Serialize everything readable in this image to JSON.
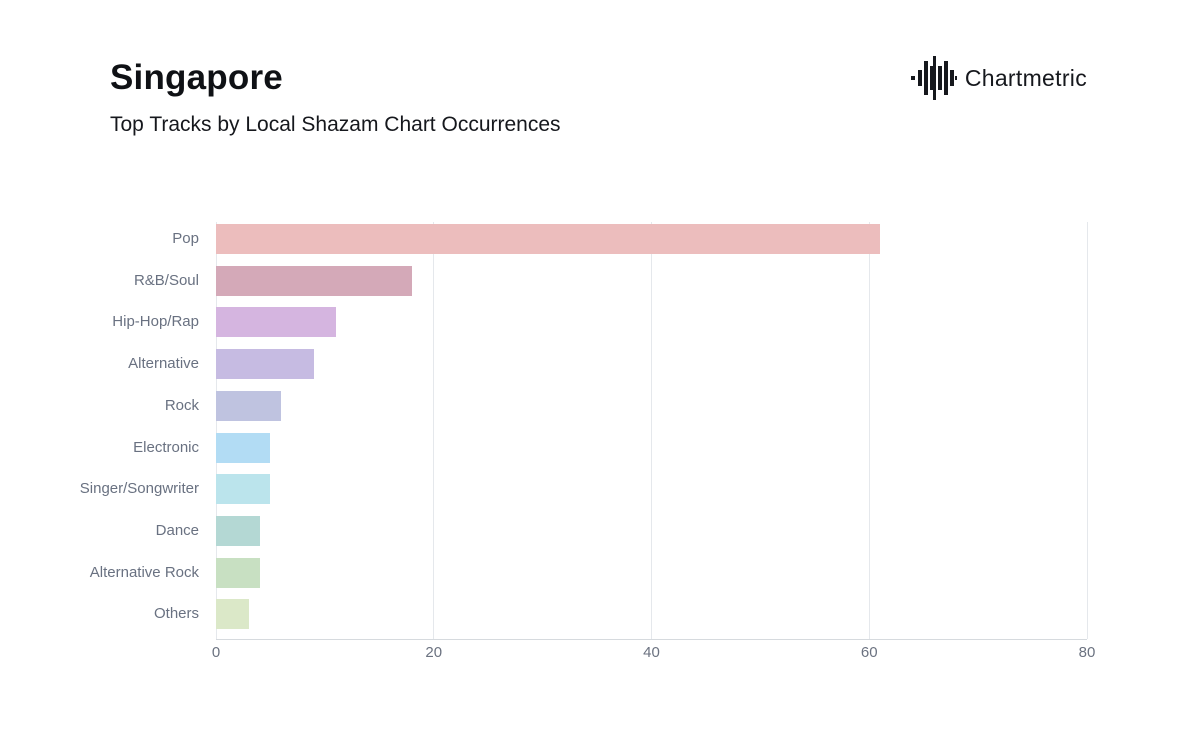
{
  "header": {
    "title": "Singapore",
    "subtitle": "Top Tracks by Local Shazam Chart Occurrences",
    "brand": {
      "name": "Chartmetric",
      "icon": "waveform-icon"
    }
  },
  "chart_data": {
    "type": "bar",
    "orientation": "horizontal",
    "title": "Top Tracks by Local Shazam Chart Occurrences",
    "xlabel": "",
    "ylabel": "",
    "categories": [
      "Pop",
      "R&B/Soul",
      "Hip-Hop/Rap",
      "Alternative",
      "Rock",
      "Electronic",
      "Singer/Songwriter",
      "Dance",
      "Alternative Rock",
      "Others"
    ],
    "values": [
      61,
      18,
      11,
      9,
      6,
      5,
      5,
      4,
      4,
      3
    ],
    "bar_colors": [
      "#ecbdbd",
      "#d4a9b8",
      "#d5b5e0",
      "#c6bbe2",
      "#bfc3e0",
      "#b2dcf4",
      "#bbe4ec",
      "#b4d8d4",
      "#c8e0c2",
      "#dbe8c8"
    ],
    "xlim": [
      0,
      80
    ],
    "x_ticks": [
      0,
      20,
      40,
      60,
      80
    ],
    "grid": "vertical",
    "legend": "none",
    "colors": {
      "grid_line": "#e5e8ec",
      "axis_line": "#d6dade",
      "tick_label": "#6b7280",
      "category_label": "#697181",
      "background": "#ffffff"
    }
  }
}
